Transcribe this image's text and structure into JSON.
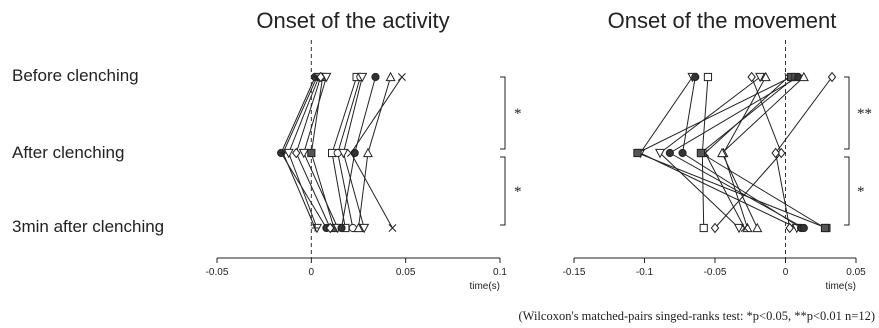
{
  "row_labels": [
    "Before clenching",
    "After clenching",
    "3min after clenching"
  ],
  "footnote": "(Wilcoxon's matched-pairs singed-ranks test: *p<0.05, **p<0.01 n=12)",
  "chart_data": [
    {
      "type": "scatter",
      "title": "Onset of the activity",
      "xlabel": "time(s)",
      "xlim": [
        -0.05,
        0.1
      ],
      "xticks": [
        "-0.05",
        "0",
        "0.05",
        "0.1"
      ],
      "conditions": [
        "Before clenching",
        "After clenching",
        "3min after clenching"
      ],
      "reference_line": 0,
      "series": [
        {
          "marker": "circle-filled",
          "values": [
            0.002,
            -0.016,
            0.008
          ]
        },
        {
          "marker": "triangle-down",
          "values": [
            0.004,
            -0.012,
            0.003
          ]
        },
        {
          "marker": "square-filled",
          "values": [
            0.006,
            0.0,
            0.012
          ]
        },
        {
          "marker": "triangle-down",
          "values": [
            0.008,
            -0.004,
            0.014
          ]
        },
        {
          "marker": "cross",
          "values": [
            0.003,
            -0.015,
            0.002
          ]
        },
        {
          "marker": "diamond",
          "values": [
            0.005,
            -0.008,
            0.01
          ]
        },
        {
          "marker": "square",
          "values": [
            0.024,
            0.011,
            0.018
          ]
        },
        {
          "marker": "circle",
          "values": [
            0.026,
            0.014,
            0.022
          ]
        },
        {
          "marker": "triangle-down",
          "values": [
            0.027,
            0.017,
            0.028
          ]
        },
        {
          "marker": "circle-filled",
          "values": [
            0.034,
            0.023,
            0.016
          ]
        },
        {
          "marker": "triangle",
          "values": [
            0.042,
            0.03,
            0.025
          ]
        },
        {
          "marker": "x",
          "values": [
            0.048,
            0.021,
            0.043
          ]
        }
      ],
      "significance": [
        {
          "between": [
            "Before clenching",
            "After clenching"
          ],
          "label": "*"
        },
        {
          "between": [
            "After clenching",
            "3min after clenching"
          ],
          "label": "*"
        }
      ]
    },
    {
      "type": "scatter",
      "title": "Onset of the movement",
      "xlabel": "time(s)",
      "xlim": [
        -0.15,
        0.05
      ],
      "xticks": [
        "-0.15",
        "-0.1",
        "-0.05",
        "0",
        "0.05"
      ],
      "conditions": [
        "Before clenching",
        "After clenching",
        "3min after clenching"
      ],
      "reference_line": 0,
      "series": [
        {
          "marker": "triangle-down",
          "values": [
            -0.066,
            -0.103,
            0.008
          ]
        },
        {
          "marker": "circle-filled",
          "values": [
            -0.064,
            -0.073,
            0.011
          ]
        },
        {
          "marker": "square",
          "values": [
            -0.055,
            -0.059,
            -0.058
          ]
        },
        {
          "marker": "diamond",
          "values": [
            -0.024,
            -0.003,
            -0.05
          ]
        },
        {
          "marker": "triangle-down",
          "values": [
            -0.018,
            -0.089,
            -0.033
          ]
        },
        {
          "marker": "triangle",
          "values": [
            -0.014,
            -0.044,
            -0.027
          ]
        },
        {
          "marker": "x",
          "values": [
            0.002,
            -0.057,
            -0.029
          ]
        },
        {
          "marker": "square-filled",
          "values": [
            0.004,
            -0.105,
            0.029
          ]
        },
        {
          "marker": "square-filled",
          "values": [
            0.007,
            -0.06,
            0.028
          ]
        },
        {
          "marker": "circle-filled",
          "values": [
            0.009,
            -0.082,
            0.013
          ]
        },
        {
          "marker": "triangle",
          "values": [
            0.013,
            -0.045,
            -0.02
          ]
        },
        {
          "marker": "diamond",
          "values": [
            0.033,
            -0.007,
            0.003
          ]
        }
      ],
      "significance": [
        {
          "between": [
            "Before clenching",
            "After clenching"
          ],
          "label": "**"
        },
        {
          "between": [
            "After clenching",
            "3min after clenching"
          ],
          "label": "*"
        }
      ]
    }
  ]
}
